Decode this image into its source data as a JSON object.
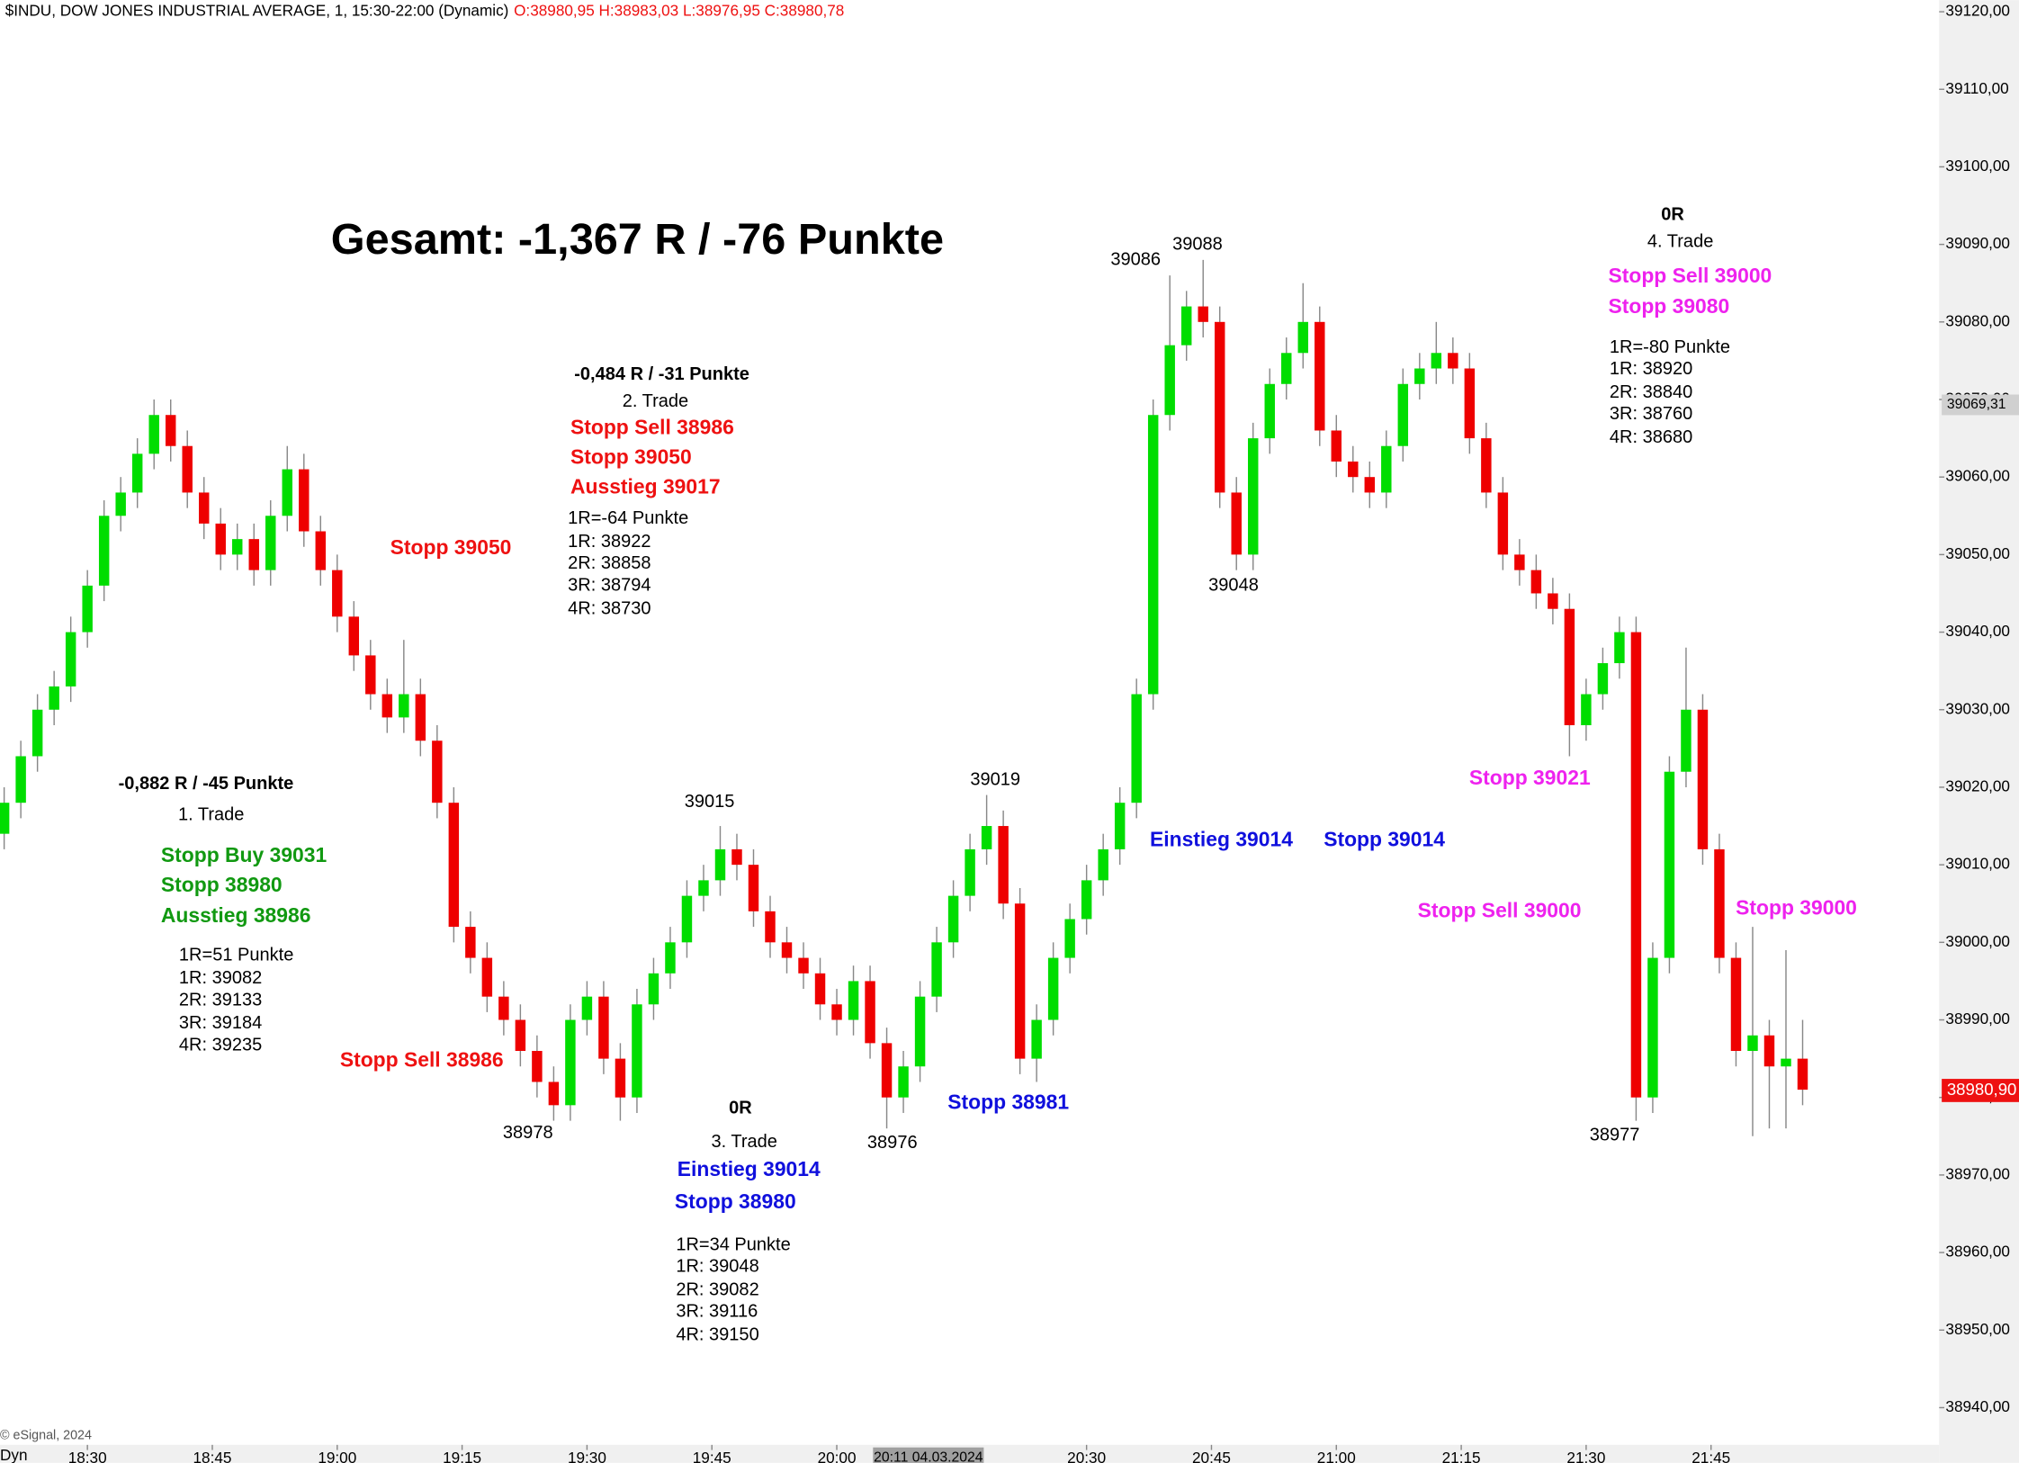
{
  "chart_data": {
    "type": "candlestick",
    "header": "$INDU, DOW JONES INDUSTRIAL AVERAGE, 1, 15:30-22:00 (Dynamic)",
    "ohlc_text": "O:38980,95 H:38983,03 L:38976,95 C:38980,78",
    "title": "Gesamt: -1,367 R / -76 Punkte",
    "up_color": "#00dd00",
    "down_color": "#ee0000",
    "xlim": [
      1099.5,
      1332.4
    ],
    "ylim": [
      38935.2,
      39121.5
    ],
    "xticks": [
      {
        "value": 1110,
        "label": "18:30"
      },
      {
        "value": 1125,
        "label": "18:45"
      },
      {
        "value": 1140,
        "label": "19:00"
      },
      {
        "value": 1155,
        "label": "19:15"
      },
      {
        "value": 1170,
        "label": "19:30"
      },
      {
        "value": 1185,
        "label": "19:45"
      },
      {
        "value": 1200,
        "label": "20:00"
      },
      {
        "value": 1230,
        "label": "20:30"
      },
      {
        "value": 1245,
        "label": "20:45"
      },
      {
        "value": 1260,
        "label": "21:00"
      },
      {
        "value": 1275,
        "label": "21:15"
      },
      {
        "value": 1290,
        "label": "21:30"
      },
      {
        "value": 1305,
        "label": "21:45"
      }
    ],
    "crosshair_time": "20:11 04.03.2024",
    "yticks": [
      {
        "value": 39120,
        "label": "39120,00"
      },
      {
        "value": 39110,
        "label": "39110,00"
      },
      {
        "value": 39100,
        "label": "39100,00"
      },
      {
        "value": 39090,
        "label": "39090,00"
      },
      {
        "value": 39080,
        "label": "39080,00"
      },
      {
        "value": 39070,
        "label": "39070,00"
      },
      {
        "value": 39060,
        "label": "39060,00"
      },
      {
        "value": 39050,
        "label": "39050,00"
      },
      {
        "value": 39040,
        "label": "39040,00"
      },
      {
        "value": 39030,
        "label": "39030,00"
      },
      {
        "value": 39020,
        "label": "39020,00"
      },
      {
        "value": 39010,
        "label": "39010,00"
      },
      {
        "value": 39000,
        "label": "39000,00"
      },
      {
        "value": 38990,
        "label": "38990,00"
      },
      {
        "value": 38980,
        "label": "38980,00"
      },
      {
        "value": 38970,
        "label": "38970,00"
      },
      {
        "value": 38960,
        "label": "38960,00"
      },
      {
        "value": 38950,
        "label": "38950,00"
      },
      {
        "value": 38940,
        "label": "38940,00"
      }
    ],
    "crosshair_price": {
      "value": 39069.31,
      "label": "39069,31"
    },
    "last_price": {
      "value": 38980.9,
      "label": "38980,90"
    },
    "copyright": "© eSignal, 2024",
    "corner_label": "Dyn",
    "x": [
      1100,
      1102,
      1104,
      1106,
      1108,
      1110,
      1112,
      1114,
      1116,
      1118,
      1120,
      1122,
      1124,
      1126,
      1128,
      1130,
      1132,
      1134,
      1136,
      1138,
      1140,
      1142,
      1144,
      1146,
      1148,
      1150,
      1152,
      1154,
      1156,
      1158,
      1160,
      1162,
      1164,
      1166,
      1168,
      1170,
      1172,
      1174,
      1176,
      1178,
      1180,
      1182,
      1184,
      1186,
      1188,
      1190,
      1192,
      1194,
      1196,
      1198,
      1200,
      1202,
      1204,
      1206,
      1208,
      1210,
      1212,
      1214,
      1216,
      1218,
      1220,
      1222,
      1224,
      1226,
      1228,
      1230,
      1232,
      1234,
      1236,
      1238,
      1240,
      1242,
      1244,
      1246,
      1248,
      1250,
      1252,
      1254,
      1256,
      1258,
      1260,
      1262,
      1264,
      1266,
      1268,
      1270,
      1272,
      1274,
      1276,
      1278,
      1280,
      1282,
      1284,
      1286,
      1288,
      1290,
      1292,
      1294,
      1296,
      1298,
      1300,
      1302,
      1304,
      1306,
      1308,
      1310,
      1312,
      1314,
      1316
    ],
    "open": [
      39014,
      39018,
      39024,
      39030,
      39033,
      39040,
      39046,
      39055,
      39058,
      39063,
      39068,
      39064,
      39058,
      39054,
      39050,
      39052,
      39048,
      39055,
      39061,
      39053,
      39048,
      39042,
      39037,
      39032,
      39029,
      39032,
      39026,
      39018,
      39002,
      38998,
      38993,
      38990,
      38986,
      38982,
      38979,
      38990,
      38993,
      38985,
      38980,
      38992,
      38996,
      39000,
      39006,
      39008,
      39012,
      39010,
      39004,
      39000,
      38998,
      38996,
      38992,
      38990,
      38995,
      38987,
      38980,
      38984,
      38993,
      39000,
      39006,
      39012,
      39015,
      39005,
      38985,
      38990,
      38998,
      39003,
      39008,
      39012,
      39018,
      39032,
      39068,
      39077,
      39082,
      39080,
      39058,
      39050,
      39065,
      39072,
      39076,
      39080,
      39066,
      39062,
      39060,
      39058,
      39064,
      39072,
      39074,
      39076,
      39074,
      39065,
      39058,
      39050,
      39048,
      39045,
      39043,
      39028,
      39032,
      39036,
      39040,
      38980,
      38998,
      39022,
      39030,
      39012,
      38998,
      38986,
      38988,
      38984,
      38985
    ],
    "high": [
      39020,
      39026,
      39032,
      39035,
      39042,
      39048,
      39057,
      39060,
      39065,
      39070,
      39070,
      39066,
      39060,
      39056,
      39054,
      39054,
      39057,
      39064,
      39063,
      39055,
      39050,
      39044,
      39039,
      39034,
      39039,
      39034,
      39028,
      39020,
      39004,
      39000,
      38995,
      38992,
      38988,
      38984,
      38992,
      38995,
      38995,
      38987,
      38994,
      38998,
      39002,
      39008,
      39010,
      39015,
      39014,
      39012,
      39006,
      39002,
      39000,
      38998,
      38994,
      38997,
      38997,
      38989,
      38986,
      38995,
      39002,
      39008,
      39014,
      39019,
      39017,
      39007,
      38992,
      39000,
      39005,
      39010,
      39014,
      39020,
      39034,
      39070,
      39086,
      39084,
      39088,
      39082,
      39060,
      39067,
      39074,
      39078,
      39085,
      39082,
      39068,
      39064,
      39062,
      39066,
      39074,
      39076,
      39080,
      39078,
      39076,
      39067,
      39060,
      39052,
      39050,
      39047,
      39045,
      39034,
      39038,
      39042,
      39042,
      39000,
      39024,
      39038,
      39032,
      39014,
      39000,
      39002,
      38990,
      38999,
      38990
    ],
    "low": [
      39012,
      39016,
      39022,
      39028,
      39031,
      39038,
      39044,
      39053,
      39056,
      39061,
      39062,
      39056,
      39052,
      39048,
      39048,
      39046,
      39046,
      39053,
      39051,
      39046,
      39040,
      39035,
      39030,
      39027,
      39027,
      39024,
      39016,
      39000,
      38996,
      38991,
      38988,
      38984,
      38980,
      38977,
      38977,
      38988,
      38983,
      38977,
      38978,
      38990,
      38994,
      38998,
      39004,
      39006,
      39008,
      39002,
      38998,
      38996,
      38994,
      38990,
      38988,
      38988,
      38985,
      38976,
      38978,
      38982,
      38991,
      38998,
      39004,
      39010,
      39003,
      38983,
      38982,
      38988,
      38996,
      39001,
      39006,
      39010,
      39016,
      39030,
      39066,
      39075,
      39078,
      39056,
      39048,
      39048,
      39063,
      39070,
      39074,
      39064,
      39060,
      39058,
      39056,
      39056,
      39062,
      39070,
      39072,
      39072,
      39063,
      39056,
      39048,
      39046,
      39043,
      39041,
      39024,
      39026,
      39030,
      39034,
      38977,
      38978,
      38996,
      39020,
      39010,
      38996,
      38984,
      38975,
      38976,
      38976,
      38979
    ],
    "close": [
      39018,
      39024,
      39030,
      39033,
      39040,
      39046,
      39055,
      39058,
      39063,
      39068,
      39064,
      39058,
      39054,
      39050,
      39052,
      39048,
      39055,
      39061,
      39053,
      39048,
      39042,
      39037,
      39032,
      39029,
      39032,
      39026,
      39018,
      39002,
      38998,
      38993,
      38990,
      38986,
      38982,
      38979,
      38990,
      38993,
      38985,
      38980,
      38992,
      38996,
      39000,
      39006,
      39008,
      39012,
      39010,
      39004,
      39000,
      38998,
      38996,
      38992,
      38990,
      38995,
      38987,
      38980,
      38984,
      38993,
      39000,
      39006,
      39012,
      39015,
      39005,
      38985,
      38990,
      38998,
      39003,
      39008,
      39012,
      39018,
      39032,
      39068,
      39077,
      39082,
      39080,
      39058,
      39050,
      39065,
      39072,
      39076,
      39080,
      39066,
      39062,
      39060,
      39058,
      39064,
      39072,
      39074,
      39076,
      39074,
      39065,
      39058,
      39050,
      39048,
      39045,
      39043,
      39028,
      39032,
      39036,
      39040,
      38980,
      38998,
      39022,
      39030,
      39012,
      38998,
      38986,
      38988,
      38984,
      38985,
      38981
    ],
    "annotations": [
      {
        "text": "-0,484 R / -31 Punkte",
        "color": "#000000"
      },
      {
        "text": "2. Trade",
        "color": "#000000"
      },
      {
        "text": "Stopp Sell 38986",
        "color": "#ee1111"
      },
      {
        "text": "Stopp 39050",
        "color": "#ee1111"
      },
      {
        "text": "Ausstieg 39017",
        "color": "#ee1111"
      },
      {
        "text": "1R=-64 Punkte",
        "color": "#000000"
      },
      {
        "text": "1R: 38922",
        "color": "#000000"
      },
      {
        "text": "2R: 38858",
        "color": "#000000"
      },
      {
        "text": "3R: 38794",
        "color": "#000000"
      },
      {
        "text": "4R: 38730",
        "color": "#000000"
      },
      {
        "text": "Stopp 39050",
        "color": "#ee1111"
      },
      {
        "text": "-0,882 R / -45 Punkte",
        "color": "#000000"
      },
      {
        "text": "1. Trade",
        "color": "#000000"
      },
      {
        "text": "Stopp Buy 39031",
        "color": "#119911"
      },
      {
        "text": "Stopp 38980",
        "color": "#119911"
      },
      {
        "text": "Ausstieg 38986",
        "color": "#119911"
      },
      {
        "text": "1R=51 Punkte",
        "color": "#000000"
      },
      {
        "text": "1R: 39082",
        "color": "#000000"
      },
      {
        "text": "2R: 39133",
        "color": "#000000"
      },
      {
        "text": "3R: 39184",
        "color": "#000000"
      },
      {
        "text": "4R: 39235",
        "color": "#000000"
      },
      {
        "text": "Stopp Sell 38986",
        "color": "#ee1111"
      },
      {
        "text": "38978",
        "color": "#000000"
      },
      {
        "text": "39015",
        "color": "#000000"
      },
      {
        "text": "0R",
        "color": "#000000"
      },
      {
        "text": "3. Trade",
        "color": "#000000"
      },
      {
        "text": "Einstieg 39014",
        "color": "#1010dd"
      },
      {
        "text": "Stopp 38980",
        "color": "#1010dd"
      },
      {
        "text": "1R=34 Punkte",
        "color": "#000000"
      },
      {
        "text": "1R: 39048",
        "color": "#000000"
      },
      {
        "text": "2R: 39082",
        "color": "#000000"
      },
      {
        "text": "3R: 39116",
        "color": "#000000"
      },
      {
        "text": "4R: 39150",
        "color": "#000000"
      },
      {
        "text": "38976",
        "color": "#000000"
      },
      {
        "text": "39019",
        "color": "#000000"
      },
      {
        "text": "Stopp 38981",
        "color": "#1010dd"
      },
      {
        "text": "Einstieg 39014",
        "color": "#1010dd"
      },
      {
        "text": "Stopp 39014",
        "color": "#1010dd"
      },
      {
        "text": "39086",
        "color": "#000000"
      },
      {
        "text": "39088",
        "color": "#000000"
      },
      {
        "text": "39048",
        "color": "#000000"
      },
      {
        "text": "0R",
        "color": "#000000"
      },
      {
        "text": "4. Trade",
        "color": "#000000"
      },
      {
        "text": "Stopp Sell 39000",
        "color": "#ee22ee"
      },
      {
        "text": "Stopp 39080",
        "color": "#ee22ee"
      },
      {
        "text": "1R=-80 Punkte",
        "color": "#000000"
      },
      {
        "text": "1R: 38920",
        "color": "#000000"
      },
      {
        "text": "2R: 38840",
        "color": "#000000"
      },
      {
        "text": "3R: 38760",
        "color": "#000000"
      },
      {
        "text": "4R: 38680",
        "color": "#000000"
      },
      {
        "text": "Stopp 39021",
        "color": "#ee22ee"
      },
      {
        "text": "Stopp Sell 39000",
        "color": "#ee22ee"
      },
      {
        "text": "Stopp 39000",
        "color": "#ee22ee"
      },
      {
        "text": "38977",
        "color": "#000000"
      }
    ]
  }
}
